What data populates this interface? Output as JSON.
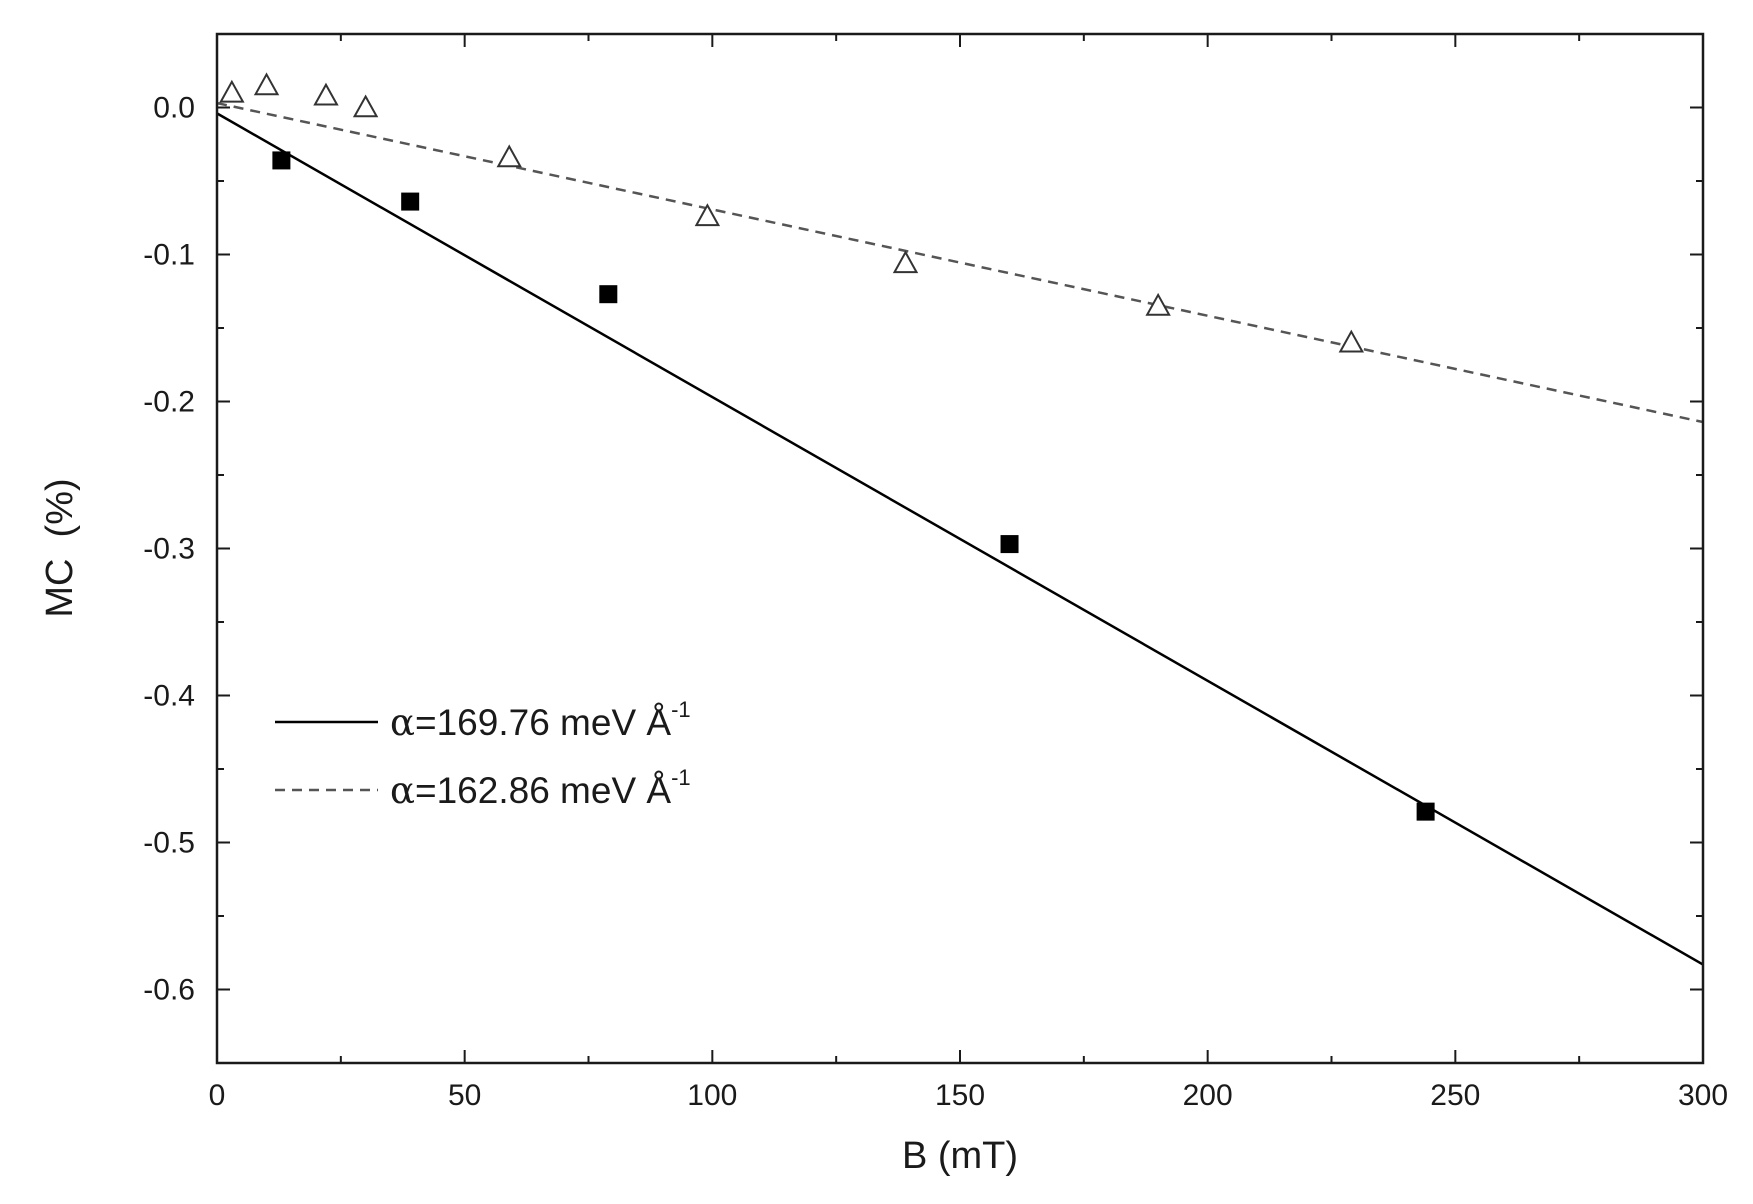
{
  "chart_data": {
    "type": "scatter",
    "title": "",
    "xlabel": "B (mT)",
    "ylabel": "MC  (%)",
    "xlim": [
      0,
      300
    ],
    "ylim": [
      -0.65,
      0.05
    ],
    "x_ticks": [
      0,
      50,
      100,
      150,
      200,
      250,
      300
    ],
    "y_ticks": [
      0.0,
      -0.1,
      -0.2,
      -0.3,
      -0.4,
      -0.5,
      -0.6
    ],
    "x_tick_labels": [
      "0",
      "50",
      "100",
      "150",
      "200",
      "250",
      "300"
    ],
    "y_tick_labels": [
      "0.0",
      "-0.1",
      "-0.2",
      "-0.3",
      "-0.4",
      "-0.5",
      "-0.6"
    ],
    "grid": false,
    "series": [
      {
        "marker": "filled-square",
        "color": "#000000",
        "x": [
          13,
          39,
          79,
          160,
          244
        ],
        "y": [
          -0.036,
          -0.064,
          -0.127,
          -0.297,
          -0.479
        ]
      },
      {
        "marker": "open-triangle",
        "color": "#333333",
        "x": [
          3,
          10,
          22,
          30,
          59,
          99,
          139,
          190,
          229
        ],
        "y": [
          0.01,
          0.015,
          0.008,
          0.0,
          -0.034,
          -0.074,
          -0.106,
          -0.135,
          -0.16
        ]
      }
    ],
    "fit_lines": [
      {
        "style": "solid",
        "color": "#000000",
        "x": [
          0,
          300
        ],
        "y": [
          -0.004,
          -0.583
        ],
        "legend_prefix": "α",
        "legend_text": "=169.76 meV Å",
        "legend_sup": "-1"
      },
      {
        "style": "dashed",
        "color": "#555555",
        "x": [
          0,
          300
        ],
        "y": [
          0.003,
          -0.214
        ],
        "legend_prefix": "α",
        "legend_text": "=162.86 meV Å",
        "legend_sup": "-1"
      }
    ],
    "legend_position": "lower-left"
  }
}
